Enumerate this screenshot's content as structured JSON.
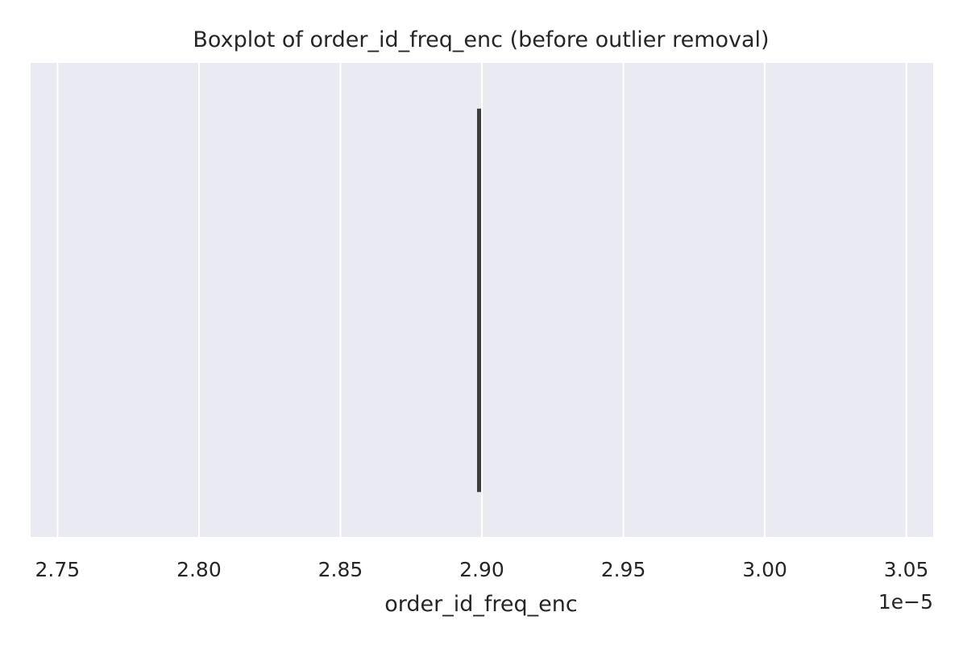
{
  "chart_data": {
    "type": "box",
    "title": "Boxplot of order_id_freq_enc (before outlier removal)",
    "xlabel": "order_id_freq_enc",
    "ylabel": "",
    "offset_text": "1e−5",
    "xlim": [
      2.7405,
      3.0595
    ],
    "xticks": [
      2.75,
      2.8,
      2.85,
      2.9,
      2.95,
      3.0,
      3.05
    ],
    "xtick_labels": [
      "2.75",
      "2.80",
      "2.85",
      "2.90",
      "2.95",
      "3.00",
      "3.05"
    ],
    "grid": true,
    "boxes": [
      {
        "min": 2.899,
        "q1": 2.899,
        "median": 2.899,
        "q3": 2.899,
        "max": 2.899
      }
    ],
    "colors": {
      "plot_bg": "#eaeaf2",
      "grid": "#ffffff",
      "box_line": "#3f3f3f",
      "text": "#262626"
    }
  }
}
